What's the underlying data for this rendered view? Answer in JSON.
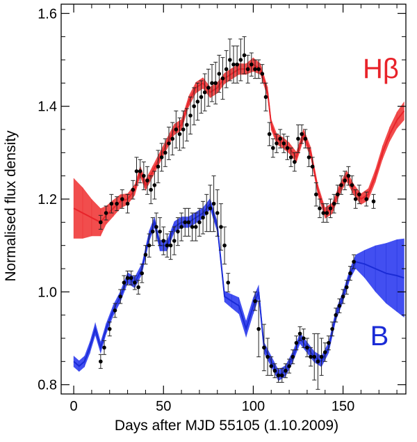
{
  "chart_data": {
    "type": "line",
    "title": "",
    "xlabel": "Days after MJD 55105 (1.10.2009)",
    "ylabel": "Normalised flux density",
    "xlim": [
      -7,
      185
    ],
    "ylim": [
      0.78,
      1.62
    ],
    "xticks": [
      0,
      50,
      100,
      150
    ],
    "xtick_labels": [
      "0",
      "50",
      "100",
      "150"
    ],
    "yticks": [
      0.8,
      1.0,
      1.2,
      1.4,
      1.6
    ],
    "ytick_labels": [
      "0.8",
      "1.0",
      "1.2",
      "1.4",
      "1.6"
    ],
    "grid": false,
    "series": [
      {
        "name": "Hβ",
        "label": "Hβ",
        "color": "#e8232a",
        "band_color": "#f03a3a",
        "model_x": [
          0,
          5,
          10,
          15,
          18,
          22,
          26,
          30,
          34,
          37,
          40,
          44,
          48,
          52,
          56,
          60,
          64,
          68,
          72,
          76,
          80,
          84,
          88,
          92,
          96,
          100,
          104,
          108,
          110,
          113,
          117,
          120,
          124,
          128,
          132,
          136,
          140,
          144,
          148,
          152,
          156,
          160,
          164,
          168,
          172,
          176,
          180,
          184
        ],
        "model_y": [
          1.18,
          1.17,
          1.16,
          1.15,
          1.165,
          1.18,
          1.195,
          1.2,
          1.22,
          1.26,
          1.23,
          1.26,
          1.29,
          1.32,
          1.35,
          1.36,
          1.41,
          1.44,
          1.45,
          1.43,
          1.44,
          1.46,
          1.47,
          1.48,
          1.48,
          1.49,
          1.48,
          1.43,
          1.36,
          1.33,
          1.32,
          1.31,
          1.29,
          1.34,
          1.3,
          1.22,
          1.17,
          1.18,
          1.22,
          1.25,
          1.22,
          1.2,
          1.21,
          1.25,
          1.3,
          1.34,
          1.37,
          1.39
        ],
        "model_err": [
          0.065,
          0.055,
          0.04,
          0.03,
          0.02,
          0.018,
          0.015,
          0.012,
          0.012,
          0.012,
          0.012,
          0.012,
          0.012,
          0.012,
          0.012,
          0.012,
          0.012,
          0.012,
          0.012,
          0.012,
          0.012,
          0.012,
          0.012,
          0.012,
          0.012,
          0.015,
          0.012,
          0.012,
          0.012,
          0.012,
          0.012,
          0.012,
          0.012,
          0.012,
          0.012,
          0.012,
          0.012,
          0.012,
          0.012,
          0.012,
          0.012,
          0.012,
          0.013,
          0.014,
          0.015,
          0.016,
          0.018,
          0.02
        ],
        "obs_x": [
          15,
          18,
          21,
          24,
          27,
          30,
          33,
          35,
          37,
          39,
          41,
          43,
          45,
          47,
          49,
          51,
          53,
          55,
          57,
          59,
          61,
          63,
          65,
          67,
          69,
          71,
          73,
          75,
          77,
          79,
          81,
          83,
          85,
          87,
          89,
          91,
          93,
          95,
          97,
          99,
          101,
          103,
          105,
          107,
          109,
          111,
          113,
          115,
          117,
          119,
          121,
          123,
          125,
          127,
          129,
          131,
          133,
          135,
          137,
          139,
          141,
          143,
          145,
          147,
          149,
          151,
          153,
          155,
          157,
          159,
          163,
          167
        ],
        "obs_y": [
          1.15,
          1.17,
          1.19,
          1.19,
          1.2,
          1.19,
          1.22,
          1.26,
          1.26,
          1.25,
          1.24,
          1.22,
          1.23,
          1.27,
          1.29,
          1.3,
          1.32,
          1.33,
          1.35,
          1.34,
          1.35,
          1.36,
          1.38,
          1.4,
          1.41,
          1.42,
          1.43,
          1.44,
          1.45,
          1.45,
          1.47,
          1.46,
          1.48,
          1.5,
          1.49,
          1.49,
          1.5,
          1.51,
          1.48,
          1.49,
          1.48,
          1.48,
          1.47,
          1.42,
          1.34,
          1.31,
          1.32,
          1.33,
          1.32,
          1.31,
          1.29,
          1.28,
          1.33,
          1.34,
          1.33,
          1.29,
          1.27,
          1.21,
          1.18,
          1.17,
          1.17,
          1.18,
          1.19,
          1.21,
          1.23,
          1.24,
          1.25,
          1.23,
          1.2,
          1.21,
          1.2,
          1.195
        ],
        "obs_err": [
          0.015,
          0.015,
          0.02,
          0.015,
          0.02,
          0.02,
          0.02,
          0.03,
          0.025,
          0.03,
          0.03,
          0.03,
          0.03,
          0.035,
          0.03,
          0.03,
          0.035,
          0.035,
          0.04,
          0.035,
          0.04,
          0.035,
          0.04,
          0.04,
          0.04,
          0.035,
          0.04,
          0.04,
          0.04,
          0.045,
          0.04,
          0.045,
          0.04,
          0.045,
          0.04,
          0.04,
          0.045,
          0.04,
          0.03,
          0.025,
          0.02,
          0.02,
          0.02,
          0.03,
          0.025,
          0.02,
          0.02,
          0.02,
          0.02,
          0.025,
          0.02,
          0.02,
          0.03,
          0.02,
          0.02,
          0.02,
          0.02,
          0.025,
          0.02,
          0.02,
          0.02,
          0.02,
          0.02,
          0.02,
          0.02,
          0.02,
          0.02,
          0.02,
          0.02,
          0.02,
          0.015,
          0.015
        ]
      },
      {
        "name": "B",
        "label": "B",
        "color": "#1a2bd6",
        "band_color": "#2e3cf0",
        "model_x": [
          0,
          3,
          6,
          9,
          12,
          15,
          18,
          22,
          26,
          30,
          34,
          38,
          42,
          45,
          48,
          52,
          56,
          60,
          64,
          68,
          72,
          76,
          80,
          84,
          88,
          92,
          96,
          100,
          103,
          106,
          110,
          114,
          118,
          122,
          126,
          130,
          134,
          138,
          142,
          146,
          150,
          154,
          157,
          162,
          168,
          174,
          180,
          184
        ],
        "model_y": [
          0.85,
          0.84,
          0.85,
          0.88,
          0.92,
          0.88,
          0.92,
          0.96,
          0.99,
          1.03,
          1.02,
          1.05,
          1.12,
          1.15,
          1.1,
          1.1,
          1.14,
          1.15,
          1.15,
          1.16,
          1.17,
          1.19,
          1.14,
          0.99,
          0.98,
          0.97,
          0.92,
          0.97,
          1.0,
          0.88,
          0.85,
          0.82,
          0.83,
          0.86,
          0.9,
          0.88,
          0.86,
          0.85,
          0.88,
          0.95,
          0.99,
          1.04,
          1.065,
          1.06,
          1.05,
          1.04,
          1.035,
          1.03
        ],
        "model_err": [
          0.012,
          0.012,
          0.012,
          0.013,
          0.014,
          0.013,
          0.012,
          0.012,
          0.012,
          0.012,
          0.012,
          0.012,
          0.012,
          0.012,
          0.012,
          0.012,
          0.012,
          0.012,
          0.012,
          0.012,
          0.012,
          0.012,
          0.012,
          0.012,
          0.015,
          0.018,
          0.018,
          0.018,
          0.015,
          0.012,
          0.012,
          0.012,
          0.012,
          0.012,
          0.012,
          0.012,
          0.012,
          0.012,
          0.012,
          0.012,
          0.012,
          0.012,
          0.015,
          0.03,
          0.05,
          0.065,
          0.078,
          0.085
        ],
        "obs_x": [
          15,
          17,
          20,
          23,
          26,
          28,
          30,
          32,
          34,
          36,
          38,
          40,
          42,
          44,
          46,
          48,
          50,
          52,
          54,
          56,
          58,
          60,
          62,
          64,
          66,
          68,
          70,
          72,
          74,
          76,
          78,
          80,
          82,
          84,
          86,
          101,
          103,
          106,
          108,
          110,
          112,
          114,
          116,
          118,
          120,
          122,
          124,
          126,
          128,
          130,
          132,
          134,
          136,
          138,
          140,
          142,
          144,
          146,
          148,
          150,
          152,
          154,
          156
        ],
        "obs_y": [
          0.85,
          0.88,
          0.92,
          0.96,
          0.99,
          1.02,
          1.03,
          1.03,
          1.02,
          1.01,
          1.04,
          1.08,
          1.1,
          1.13,
          1.14,
          1.13,
          1.11,
          1.1,
          1.1,
          1.11,
          1.13,
          1.14,
          1.15,
          1.15,
          1.14,
          1.14,
          1.15,
          1.16,
          1.17,
          1.18,
          1.19,
          1.17,
          1.14,
          1.1,
          1.02,
          0.98,
          0.92,
          0.88,
          0.86,
          0.84,
          0.83,
          0.82,
          0.82,
          0.83,
          0.84,
          0.86,
          0.89,
          0.91,
          0.9,
          0.88,
          0.86,
          0.86,
          0.85,
          0.86,
          0.87,
          0.89,
          0.92,
          0.95,
          0.97,
          0.99,
          1.01,
          1.04,
          1.065
        ],
        "obs_err": [
          0.015,
          0.015,
          0.015,
          0.015,
          0.015,
          0.015,
          0.015,
          0.015,
          0.015,
          0.015,
          0.02,
          0.02,
          0.025,
          0.03,
          0.03,
          0.03,
          0.03,
          0.025,
          0.03,
          0.03,
          0.03,
          0.03,
          0.03,
          0.03,
          0.03,
          0.03,
          0.03,
          0.035,
          0.04,
          0.05,
          0.06,
          0.05,
          0.05,
          0.04,
          0.02,
          0.02,
          0.06,
          0.05,
          0.04,
          0.02,
          0.015,
          0.015,
          0.015,
          0.015,
          0.015,
          0.015,
          0.015,
          0.015,
          0.02,
          0.02,
          0.02,
          0.05,
          0.06,
          0.04,
          0.02,
          0.015,
          0.015,
          0.015,
          0.015,
          0.015,
          0.015,
          0.015,
          0.015
        ]
      }
    ]
  }
}
